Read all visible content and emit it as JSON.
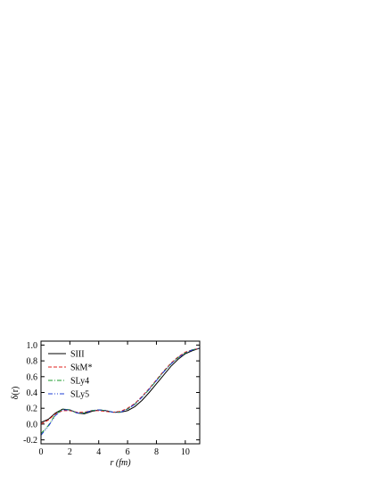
{
  "chart_data": {
    "type": "line",
    "xlabel": "r (fm)",
    "ylabel": "δ(r)",
    "x": [
      0,
      0.5,
      1,
      1.5,
      2,
      2.5,
      3,
      3.5,
      4,
      4.5,
      5,
      5.5,
      6,
      6.5,
      7,
      7.5,
      8,
      8.5,
      9,
      9.5,
      10,
      10.5,
      11
    ],
    "series": [
      {
        "name": "SIII",
        "color": "#000000",
        "dash": "none",
        "values": [
          0.02,
          0.06,
          0.14,
          0.19,
          0.18,
          0.14,
          0.13,
          0.16,
          0.18,
          0.17,
          0.15,
          0.15,
          0.17,
          0.22,
          0.3,
          0.4,
          0.51,
          0.62,
          0.73,
          0.82,
          0.89,
          0.93,
          0.96
        ]
      },
      {
        "name": "SkM*",
        "color": "#e0201c",
        "dash": "4 2",
        "values": [
          0.0,
          0.05,
          0.13,
          0.17,
          0.17,
          0.15,
          0.15,
          0.17,
          0.17,
          0.16,
          0.15,
          0.16,
          0.2,
          0.26,
          0.35,
          0.45,
          0.56,
          0.67,
          0.77,
          0.85,
          0.91,
          0.94,
          0.96
        ]
      },
      {
        "name": "SLy4",
        "color": "#1a9a2a",
        "dash": "5 2 1 2",
        "values": [
          -0.12,
          -0.02,
          0.12,
          0.19,
          0.18,
          0.14,
          0.14,
          0.17,
          0.18,
          0.17,
          0.15,
          0.15,
          0.19,
          0.25,
          0.34,
          0.44,
          0.55,
          0.66,
          0.76,
          0.84,
          0.9,
          0.94,
          0.96
        ]
      },
      {
        "name": "SLy5",
        "color": "#1f3fd6",
        "dash": "5 2 1 2 1 2",
        "values": [
          -0.14,
          -0.03,
          0.11,
          0.18,
          0.18,
          0.14,
          0.14,
          0.17,
          0.18,
          0.17,
          0.15,
          0.15,
          0.19,
          0.25,
          0.34,
          0.44,
          0.55,
          0.66,
          0.76,
          0.84,
          0.9,
          0.94,
          0.96
        ]
      }
    ],
    "xlim": [
      0,
      11
    ],
    "xticks": [
      0,
      2,
      4,
      6,
      8,
      10
    ],
    "ylim": [
      -0.25,
      1.05
    ],
    "yticks": [
      -0.2,
      {
        "value": 0,
        "label": "0.0"
      },
      0.2,
      0.4,
      0.6,
      0.8,
      {
        "value": 1,
        "label": "1.0"
      }
    ],
    "legend": "upper left"
  }
}
